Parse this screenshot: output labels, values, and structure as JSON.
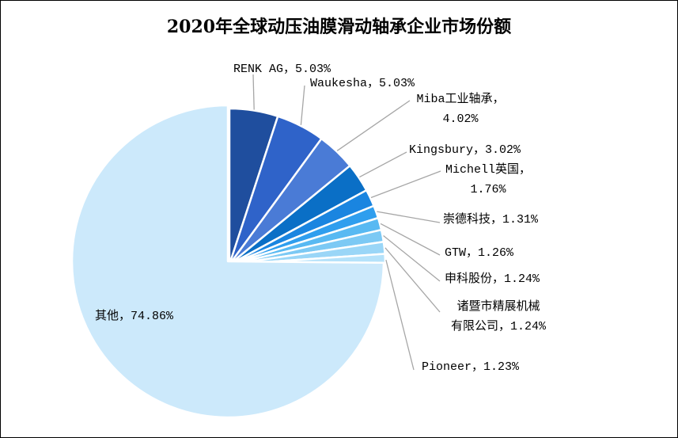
{
  "chart_data": {
    "type": "pie",
    "title": "2020年全球动压油膜滑动轴承企业市场份额",
    "slices": [
      {
        "label": "RENK AG",
        "value": 5.03,
        "value_label": "5.03%",
        "color": "#1f4e9e"
      },
      {
        "label": "Waukesha",
        "value": 5.03,
        "value_label": "5.03%",
        "color": "#2f63c9"
      },
      {
        "label": "Miba工业轴承",
        "value": 4.02,
        "value_label": "4.02%",
        "color": "#4a7bd6"
      },
      {
        "label": "Kingsbury",
        "value": 3.02,
        "value_label": "3.02%",
        "color": "#0a6fc6"
      },
      {
        "label": "Michell英国",
        "value": 1.76,
        "value_label": "1.76%",
        "color": "#1a85e0"
      },
      {
        "label": "崇德科技",
        "value": 1.31,
        "value_label": "1.31%",
        "color": "#2f9eee"
      },
      {
        "label": "GTW",
        "value": 1.26,
        "value_label": "1.26%",
        "color": "#58b9f2"
      },
      {
        "label": "申科股份",
        "value": 1.24,
        "value_label": "1.24%",
        "color": "#7cc9f4"
      },
      {
        "label": "诸暨市精展机械有限公司",
        "value": 1.24,
        "value_label": "1.24%",
        "color": "#9ad6f7"
      },
      {
        "label": "Pioneer",
        "value": 1.23,
        "value_label": "1.23%",
        "color": "#b5e2fa"
      },
      {
        "label": "其他",
        "value": 74.86,
        "value_label": "74.86%",
        "color": "#cce9fb"
      }
    ]
  }
}
